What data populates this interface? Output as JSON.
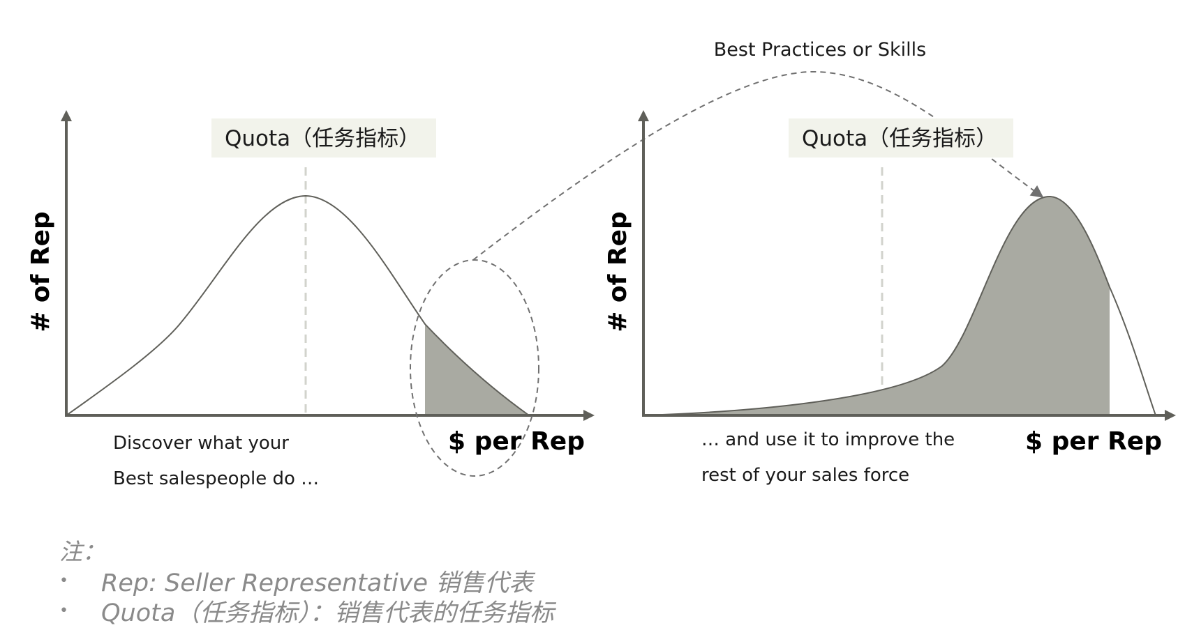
{
  "top_label": "Best Practices or Skills",
  "left_panel": {
    "quota_label": "Quota（任务指标）",
    "y_axis_label": "# of Rep",
    "x_axis_label": "$ per Rep",
    "caption_line1": "Discover what your",
    "caption_line2": "Best salespeople do …"
  },
  "right_panel": {
    "quota_label": "Quota（任务指标）",
    "y_axis_label": "# of Rep",
    "x_axis_label": "$ per Rep",
    "caption_line1": "… and use it to improve the",
    "caption_line2": "rest of your sales force"
  },
  "notes": {
    "title": "注：",
    "items": [
      "Rep: Seller Representative 销售代表",
      "Quota（任务指标）：销售代表的任务指标"
    ]
  },
  "colors": {
    "axis": "#5f5f59",
    "fill": "#a9aaa2",
    "quota_box": "#f2f3eb",
    "quota_line": "#d2d3cc",
    "dashed": "#707070",
    "note_text": "#8a8a8a"
  }
}
